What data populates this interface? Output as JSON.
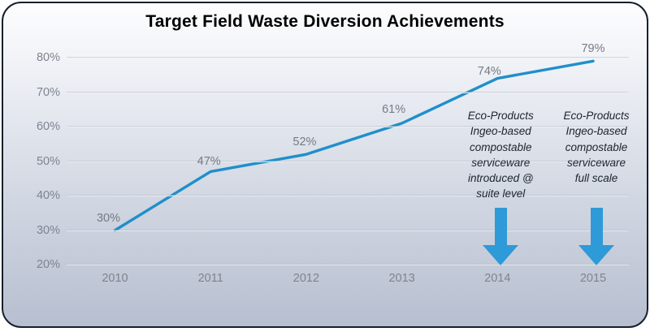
{
  "title": "Target Field Waste Diversion Achievements",
  "chart_data": {
    "type": "line",
    "title": "Target Field Waste Diversion Achievements",
    "categories": [
      "2010",
      "2011",
      "2012",
      "2013",
      "2014",
      "2015"
    ],
    "values": [
      30,
      47,
      52,
      61,
      74,
      79
    ],
    "point_labels": [
      "30%",
      "47%",
      "52%",
      "61%",
      "74%",
      "79%"
    ],
    "xlabel": "",
    "ylabel": "",
    "ylim": [
      20,
      80
    ],
    "yticks": [
      80,
      70,
      60,
      50,
      40,
      30,
      20
    ],
    "ytick_labels": [
      "80%",
      "70%",
      "60%",
      "50%",
      "40%",
      "30%",
      "20%"
    ],
    "grid": "horizontal",
    "legend": "none"
  },
  "annotations": [
    {
      "year": "2014",
      "lines": [
        "Eco-Products",
        "Ingeo-based",
        "compostable",
        "serviceware",
        "introduced @",
        "suite level"
      ],
      "marker": "down-arrow"
    },
    {
      "year": "2015",
      "lines": [
        "Eco-Products",
        "Ingeo-based",
        "compostable",
        "serviceware",
        "full scale"
      ],
      "marker": "down-arrow"
    }
  ],
  "colors": {
    "line": "#1f8fcb",
    "arrow": "#2e9ad8",
    "axis_text": "#7e848f",
    "point_label_text": "#757b86",
    "annotation_text": "#1d2430",
    "title_text": "#000000",
    "card_border": "#16202c",
    "bg_top": "#fdfdfe",
    "bg_bottom": "#b7bfd0"
  }
}
